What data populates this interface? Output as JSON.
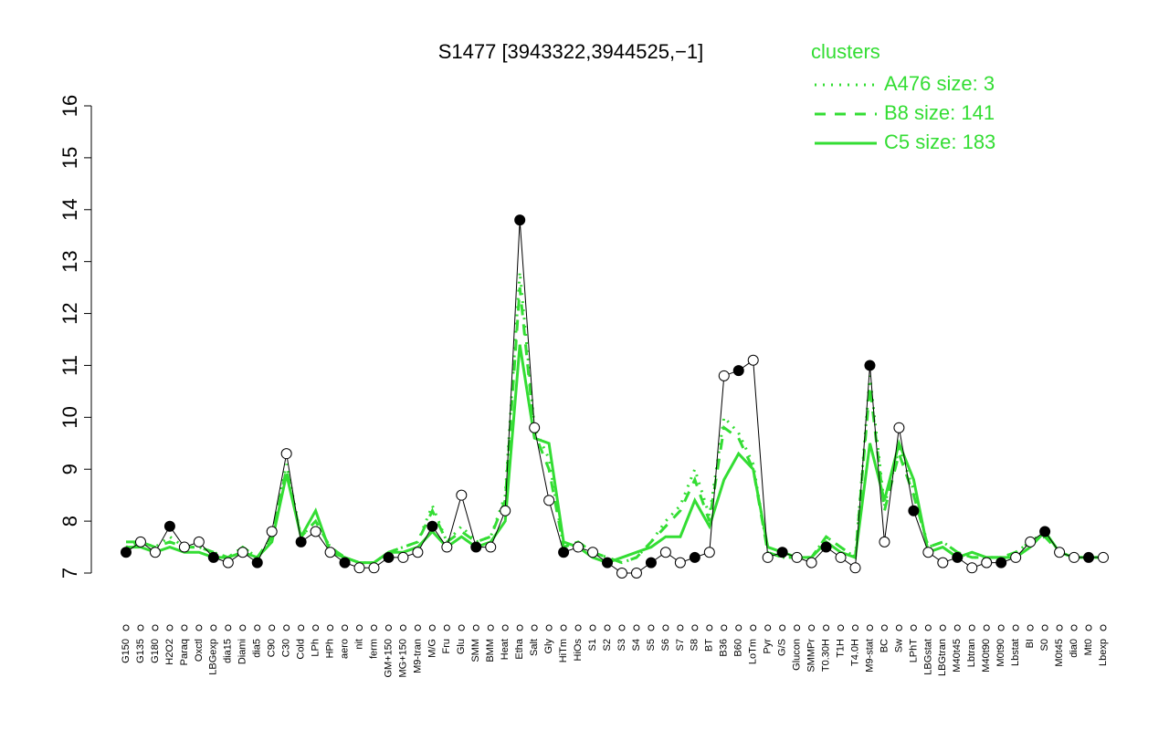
{
  "chart_data": {
    "type": "line",
    "title": "S1477 [3943322,3944525,−1]",
    "categories": [
      "G150",
      "G135",
      "G180",
      "H2O2",
      "Paraq",
      "Oxctl",
      "LBGexp",
      "dia15",
      "Diami",
      "dia5",
      "C90",
      "C30",
      "Cold",
      "LPh",
      "HPh",
      "aero",
      "nit",
      "ferm",
      "GM+150",
      "MG+150",
      "M9-tran",
      "M/G",
      "Fru",
      "Glu",
      "SMM",
      "BMM",
      "Heat",
      "Etha",
      "Salt",
      "Gly",
      "HiTm",
      "HiOs",
      "S1",
      "S2",
      "S3",
      "S4",
      "S5",
      "S6",
      "S7",
      "S8",
      "BT",
      "B36",
      "B60",
      "LoTm",
      "Pyr",
      "G/S",
      "Glucon",
      "SMMPr",
      "T0.30H",
      "T1H",
      "T4.0H",
      "M9-stat",
      "BC",
      "Sw",
      "LPhT",
      "LBGstat",
      "LBGtran",
      "M40t45",
      "Lbtran",
      "M40t90",
      "M0t90",
      "Lbstat",
      "BI",
      "S0",
      "M0t45",
      "dia0",
      "Mt0",
      "Lbexp"
    ],
    "values": [
      7.4,
      7.6,
      7.4,
      7.9,
      7.5,
      7.6,
      7.3,
      7.2,
      7.4,
      7.2,
      7.8,
      9.3,
      7.6,
      7.8,
      7.4,
      7.2,
      7.1,
      7.1,
      7.3,
      7.3,
      7.4,
      7.9,
      7.5,
      8.5,
      7.5,
      7.5,
      8.2,
      13.8,
      9.8,
      8.4,
      7.4,
      7.5,
      7.4,
      7.2,
      7.0,
      7.0,
      7.2,
      7.4,
      7.2,
      7.3,
      7.4,
      10.8,
      10.9,
      11.1,
      7.3,
      7.4,
      7.3,
      7.2,
      7.5,
      7.3,
      7.1,
      11.0,
      7.6,
      9.8,
      8.2,
      7.4,
      7.2,
      7.3,
      7.1,
      7.2,
      7.2,
      7.3,
      7.6,
      7.8,
      7.4,
      7.3,
      7.3,
      7.3
    ],
    "color": "#000000",
    "legend_title": "clusters",
    "series": [
      {
        "name": "A476 size: 3",
        "color": "#33dd33",
        "dash": "dotted",
        "values": [
          7.5,
          7.6,
          7.5,
          7.7,
          7.5,
          7.5,
          7.4,
          7.3,
          7.5,
          7.3,
          7.7,
          9.1,
          7.7,
          8.0,
          7.5,
          7.3,
          7.2,
          7.2,
          7.4,
          7.5,
          7.6,
          8.3,
          7.6,
          7.9,
          7.6,
          7.7,
          8.5,
          12.8,
          9.8,
          9.2,
          7.5,
          7.6,
          7.4,
          7.3,
          7.2,
          7.3,
          7.6,
          8.0,
          8.3,
          9.0,
          8.1,
          10.0,
          9.7,
          9.1,
          7.4,
          7.3,
          7.3,
          7.3,
          7.7,
          7.5,
          7.3,
          10.8,
          8.3,
          9.4,
          8.6,
          7.5,
          7.6,
          7.4,
          7.3,
          7.3,
          7.3,
          7.4,
          7.6,
          7.8,
          7.4,
          7.3,
          7.3,
          7.3
        ]
      },
      {
        "name": "B8 size: 141",
        "color": "#33dd33",
        "dash": "dashed",
        "values": [
          7.6,
          7.6,
          7.5,
          7.6,
          7.5,
          7.5,
          7.4,
          7.3,
          7.5,
          7.3,
          7.7,
          9.0,
          7.7,
          8.0,
          7.5,
          7.3,
          7.2,
          7.2,
          7.4,
          7.5,
          7.6,
          8.2,
          7.6,
          7.8,
          7.6,
          7.7,
          8.4,
          12.5,
          9.7,
          9.0,
          7.5,
          7.6,
          7.4,
          7.3,
          7.2,
          7.3,
          7.6,
          7.9,
          8.2,
          8.8,
          8.0,
          9.8,
          9.6,
          9.0,
          7.4,
          7.3,
          7.3,
          7.3,
          7.7,
          7.5,
          7.3,
          10.6,
          8.2,
          9.3,
          8.5,
          7.5,
          7.6,
          7.4,
          7.3,
          7.3,
          7.3,
          7.4,
          7.6,
          7.7,
          7.4,
          7.3,
          7.3,
          7.3
        ]
      },
      {
        "name": "C5 size: 183",
        "color": "#33dd33",
        "dash": "solid",
        "values": [
          7.5,
          7.5,
          7.4,
          7.5,
          7.4,
          7.4,
          7.3,
          7.3,
          7.4,
          7.3,
          7.6,
          8.9,
          7.7,
          8.2,
          7.4,
          7.3,
          7.2,
          7.2,
          7.4,
          7.4,
          7.5,
          7.8,
          7.5,
          7.7,
          7.5,
          7.6,
          8.0,
          11.4,
          9.6,
          9.5,
          7.6,
          7.5,
          7.3,
          7.2,
          7.3,
          7.4,
          7.5,
          7.7,
          7.7,
          8.4,
          7.9,
          8.8,
          9.3,
          9.0,
          7.5,
          7.4,
          7.3,
          7.3,
          7.6,
          7.4,
          7.3,
          9.5,
          8.4,
          9.5,
          8.8,
          7.4,
          7.5,
          7.3,
          7.4,
          7.3,
          7.3,
          7.3,
          7.5,
          7.8,
          7.4,
          7.3,
          7.3,
          7.3
        ]
      }
    ],
    "ylim": [
      7,
      16
    ],
    "yticks": [
      7,
      8,
      9,
      10,
      11,
      12,
      13,
      14,
      15,
      16
    ]
  }
}
